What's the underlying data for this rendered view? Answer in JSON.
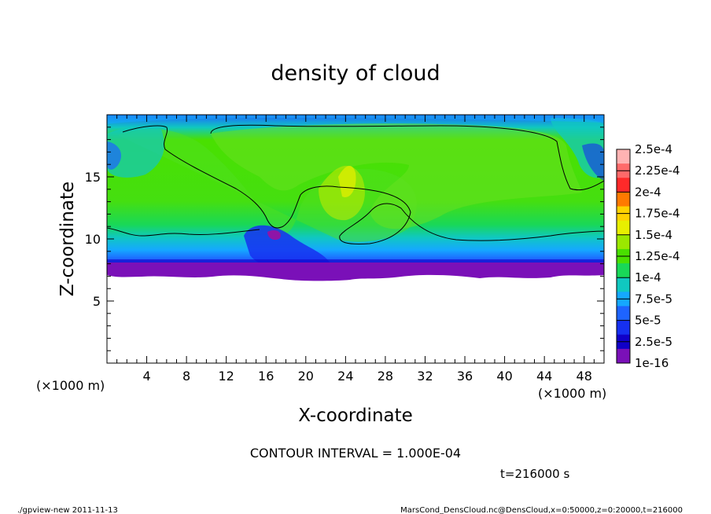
{
  "chart_data": {
    "type": "heatmap",
    "title": "density of cloud",
    "xlabel": "X-coordinate",
    "ylabel": "Z-coordinate",
    "x_scale_note": "(×1000 m)",
    "y_scale_note": "(×1000 m)",
    "xlim": [
      0,
      50
    ],
    "ylim": [
      0,
      20
    ],
    "x_ticks": [
      4,
      8,
      12,
      16,
      20,
      24,
      28,
      32,
      36,
      40,
      44,
      48
    ],
    "y_ticks": [
      5,
      10,
      15
    ],
    "colorbar": {
      "labels": [
        "2.5e-4",
        "2.25e-4",
        "2e-4",
        "1.75e-4",
        "1.5e-4",
        "1.25e-4",
        "1e-4",
        "7.5e-5",
        "5e-5",
        "2.5e-5",
        "1e-16"
      ],
      "levels": [
        0.00025,
        0.000225,
        0.0002,
        0.000175,
        0.00015,
        0.000125,
        0.0001,
        7.5e-05,
        5e-05,
        2.5e-05,
        1e-16
      ],
      "colors": [
        "#ffb3b3",
        "#ff6a6a",
        "#ff2a2a",
        "#ff7a00",
        "#ffd200",
        "#e8ef00",
        "#9be800",
        "#49e000",
        "#19d858",
        "#10c8c0",
        "#15a8ff",
        "#1e64ff",
        "#1630f0",
        "#1000c8",
        "#7a10b8"
      ]
    },
    "contour_interval_text": "CONTOUR INTERVAL = 1.000E-04",
    "time_label": "t=216000 s",
    "footer_left": "./gpview-new  2011-11-13",
    "footer_right": "MarsCond_DensCloud.nc@DensCloud,x=0:50000,z=0:20000,t=216000",
    "grid": false
  }
}
